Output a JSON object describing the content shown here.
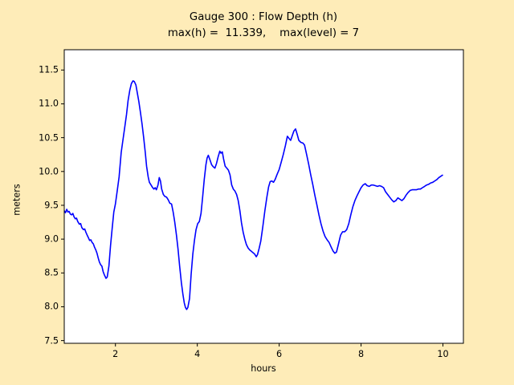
{
  "figure": {
    "background_color": "#FEECB8",
    "axes_background": "#FFFFFF",
    "frame_color": "#000000",
    "text_color": "#000000"
  },
  "chart_data": {
    "type": "line",
    "title": "Gauge 300 : Flow Depth (h)",
    "subtitle": "max(h) =  11.339,    max(level) = 7",
    "max_h": 11.339,
    "max_level": 7,
    "xlabel": "hours",
    "ylabel": "meters",
    "xlim": [
      0.75,
      10.5
    ],
    "ylim": [
      7.46,
      11.8
    ],
    "x_ticks": [
      2,
      4,
      6,
      8,
      10
    ],
    "x_tick_labels": [
      "2",
      "4",
      "6",
      "8",
      "10"
    ],
    "y_ticks": [
      7.5,
      8.0,
      8.5,
      9.0,
      9.5,
      10.0,
      10.5,
      11.0,
      11.5
    ],
    "y_tick_labels": [
      "7.5",
      "8.0",
      "8.5",
      "9.0",
      "9.5",
      "10.0",
      "10.5",
      "11.0",
      "11.5"
    ],
    "grid": false,
    "legend": "none",
    "line_color": "#0000FF",
    "series": [
      {
        "name": "flow depth h",
        "x": [
          0.75,
          0.78,
          0.81,
          0.84,
          0.87,
          0.9,
          0.93,
          0.96,
          0.99,
          1.02,
          1.05,
          1.08,
          1.12,
          1.15,
          1.18,
          1.22,
          1.25,
          1.28,
          1.31,
          1.34,
          1.37,
          1.4,
          1.43,
          1.46,
          1.49,
          1.52,
          1.55,
          1.58,
          1.61,
          1.64,
          1.67,
          1.7,
          1.73,
          1.77,
          1.8,
          1.84,
          1.88,
          1.92,
          1.96,
          2.0,
          2.04,
          2.09,
          2.14,
          2.18,
          2.23,
          2.27,
          2.31,
          2.35,
          2.39,
          2.43,
          2.46,
          2.5,
          2.53,
          2.57,
          2.61,
          2.65,
          2.69,
          2.73,
          2.76,
          2.8,
          2.83,
          2.87,
          2.9,
          2.94,
          2.97,
          3.0,
          3.04,
          3.07,
          3.1,
          3.13,
          3.17,
          3.21,
          3.25,
          3.29,
          3.33,
          3.37,
          3.41,
          3.45,
          3.49,
          3.53,
          3.57,
          3.61,
          3.65,
          3.68,
          3.71,
          3.74,
          3.77,
          3.81,
          3.85,
          3.89,
          3.93,
          3.97,
          4.01,
          4.05,
          4.09,
          4.13,
          4.17,
          4.21,
          4.24,
          4.27,
          4.31,
          4.35,
          4.39,
          4.43,
          4.47,
          4.51,
          4.55,
          4.58,
          4.61,
          4.64,
          4.68,
          4.72,
          4.76,
          4.8,
          4.84,
          4.88,
          4.92,
          4.96,
          5.0,
          5.04,
          5.08,
          5.12,
          5.16,
          5.2,
          5.24,
          5.28,
          5.32,
          5.36,
          5.4,
          5.44,
          5.47,
          5.51,
          5.55,
          5.6,
          5.65,
          5.7,
          5.74,
          5.78,
          5.82,
          5.86,
          5.9,
          5.95,
          6.0,
          6.05,
          6.1,
          6.15,
          6.2,
          6.24,
          6.28,
          6.32,
          6.36,
          6.4,
          6.44,
          6.48,
          6.53,
          6.58,
          6.62,
          6.67,
          6.72,
          6.77,
          6.82,
          6.87,
          6.92,
          6.97,
          7.02,
          7.07,
          7.12,
          7.17,
          7.22,
          7.27,
          7.32,
          7.36,
          7.4,
          7.45,
          7.5,
          7.55,
          7.6,
          7.65,
          7.7,
          7.75,
          7.8,
          7.85,
          7.9,
          7.95,
          8.0,
          8.05,
          8.1,
          8.15,
          8.2,
          8.25,
          8.3,
          8.35,
          8.4,
          8.45,
          8.5,
          8.55,
          8.6,
          8.65,
          8.7,
          8.75,
          8.8,
          8.85,
          8.9,
          8.95,
          9.0,
          9.05,
          9.1,
          9.15,
          9.2,
          9.25,
          9.3,
          9.35,
          9.4,
          9.45,
          9.5,
          9.55,
          9.6,
          9.65,
          9.7,
          9.75,
          9.8,
          9.85,
          9.9,
          9.95,
          10.0
        ],
        "y": [
          9.42,
          9.39,
          9.44,
          9.4,
          9.41,
          9.37,
          9.36,
          9.38,
          9.33,
          9.3,
          9.31,
          9.26,
          9.22,
          9.23,
          9.17,
          9.14,
          9.15,
          9.1,
          9.06,
          9.02,
          8.98,
          8.99,
          8.95,
          8.93,
          8.88,
          8.84,
          8.79,
          8.72,
          8.66,
          8.62,
          8.6,
          8.52,
          8.47,
          8.42,
          8.44,
          8.6,
          8.9,
          9.15,
          9.4,
          9.52,
          9.7,
          9.92,
          10.28,
          10.45,
          10.66,
          10.84,
          11.05,
          11.2,
          11.3,
          11.34,
          11.33,
          11.28,
          11.18,
          11.04,
          10.88,
          10.7,
          10.5,
          10.28,
          10.08,
          9.92,
          9.84,
          9.8,
          9.77,
          9.74,
          9.76,
          9.73,
          9.8,
          9.91,
          9.86,
          9.74,
          9.66,
          9.63,
          9.62,
          9.58,
          9.53,
          9.52,
          9.4,
          9.25,
          9.06,
          8.85,
          8.6,
          8.36,
          8.18,
          8.06,
          7.99,
          7.96,
          7.99,
          8.12,
          8.48,
          8.78,
          8.98,
          9.14,
          9.23,
          9.26,
          9.38,
          9.62,
          9.88,
          10.1,
          10.2,
          10.24,
          10.17,
          10.1,
          10.07,
          10.05,
          10.12,
          10.22,
          10.3,
          10.27,
          10.29,
          10.19,
          10.08,
          10.05,
          10.02,
          9.95,
          9.8,
          9.74,
          9.71,
          9.66,
          9.57,
          9.42,
          9.24,
          9.1,
          9.0,
          8.92,
          8.87,
          8.84,
          8.82,
          8.8,
          8.78,
          8.74,
          8.77,
          8.86,
          8.97,
          9.18,
          9.42,
          9.62,
          9.77,
          9.85,
          9.86,
          9.84,
          9.88,
          9.96,
          10.03,
          10.14,
          10.25,
          10.38,
          10.52,
          10.49,
          10.46,
          10.53,
          10.6,
          10.63,
          10.55,
          10.46,
          10.43,
          10.42,
          10.39,
          10.25,
          10.11,
          9.95,
          9.81,
          9.65,
          9.51,
          9.36,
          9.23,
          9.12,
          9.04,
          8.99,
          8.95,
          8.88,
          8.82,
          8.79,
          8.81,
          8.93,
          9.06,
          9.11,
          9.11,
          9.14,
          9.23,
          9.36,
          9.48,
          9.57,
          9.64,
          9.7,
          9.76,
          9.8,
          9.82,
          9.79,
          9.78,
          9.8,
          9.8,
          9.79,
          9.78,
          9.79,
          9.78,
          9.76,
          9.7,
          9.66,
          9.62,
          9.58,
          9.55,
          9.57,
          9.61,
          9.59,
          9.57,
          9.6,
          9.65,
          9.69,
          9.72,
          9.73,
          9.73,
          9.73,
          9.74,
          9.74,
          9.76,
          9.78,
          9.8,
          9.81,
          9.83,
          9.84,
          9.86,
          9.88,
          9.91,
          9.93,
          9.95
        ]
      }
    ]
  }
}
